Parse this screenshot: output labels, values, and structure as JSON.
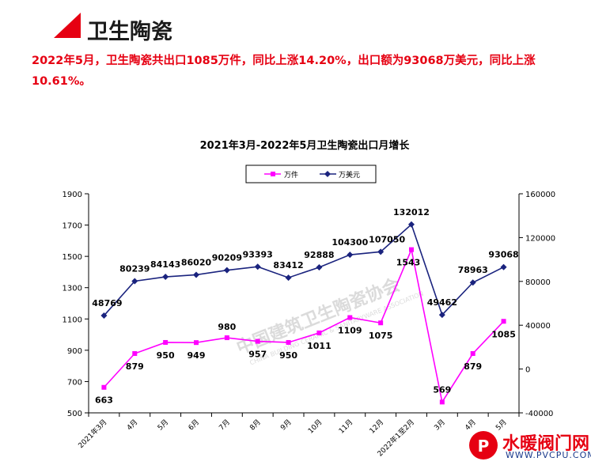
{
  "header": {
    "title": "卫生陶瓷",
    "accent_color": "#e60012"
  },
  "summary": {
    "line1": "2022年5月，卫生陶瓷共出口1085万件，同比上涨14.20%，出口额为93068万美元，同比上涨",
    "line2": "10.61%。"
  },
  "chart_data": {
    "type": "line",
    "title": "2021年3月-2022年5月卫生陶瓷出口月增长",
    "categories": [
      "2021年3月",
      "4月",
      "5月",
      "6月",
      "7月",
      "8月",
      "9月",
      "10月",
      "11月",
      "12月",
      "2022年1至2月",
      "3月",
      "4月",
      "5月"
    ],
    "series": [
      {
        "name": "万件",
        "axis": "left",
        "color": "#ff00ff",
        "marker": "square",
        "values": [
          663,
          879,
          950,
          949,
          980,
          957,
          950,
          1011,
          1109,
          1075,
          1543,
          569,
          879,
          1085
        ]
      },
      {
        "name": "万美元",
        "axis": "right",
        "color": "#1a237e",
        "marker": "diamond",
        "values": [
          48769,
          80239,
          84143,
          86020,
          90209,
          93393,
          83412,
          92888,
          104300,
          107050,
          132012,
          49462,
          78963,
          93068
        ]
      }
    ],
    "y_left": {
      "min": 500,
      "max": 1900,
      "ticks": [
        500,
        700,
        900,
        1100,
        1300,
        1500,
        1700,
        1900
      ]
    },
    "y_right": {
      "min": -40000,
      "max": 160000,
      "ticks": [
        -40000,
        0,
        40000,
        80000,
        120000,
        160000
      ]
    },
    "grid": false,
    "legend_position": "top"
  },
  "watermark": {
    "text": "水暖阀门网",
    "url": "WWW.PVCPU.COM",
    "center_text": "中国建筑卫生陶瓷协会",
    "center_sub": "CHINA BUILDING CERAMIC & SANITARYWARE ASSOCIATION"
  }
}
